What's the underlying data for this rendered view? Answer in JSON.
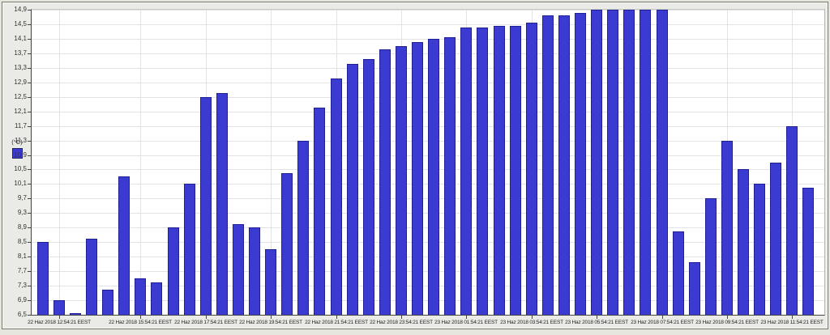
{
  "window": {
    "background": "#e6e6df",
    "panel_background": "#eaeae6",
    "panel_border_color": "#76766c"
  },
  "legend": {
    "label": "(°C)",
    "swatch_color": "#3b3bd1"
  },
  "chart_data": {
    "type": "bar",
    "title": "",
    "xlabel": "",
    "ylabel": "(°C)",
    "unit": "°C",
    "ylim": [
      6.5,
      14.9
    ],
    "y_tick_step": 0.4,
    "grid": true,
    "legend_position": "left",
    "plot_background": "#ffffff",
    "gridline_color": "#e3e3e3",
    "axis_color": "#444444",
    "bar_color": "#3b3bd1",
    "bar_border_color": "#1f1f96",
    "y_tick_labels": [
      "6,5",
      "6,9",
      "7,3",
      "7,7",
      "8,1",
      "8,5",
      "8,9",
      "9,3",
      "9,7",
      "10,1",
      "10,5",
      "10,9",
      "11,3",
      "11,7",
      "12,1",
      "12,5",
      "12,9",
      "13,3",
      "13,7",
      "14,1",
      "14,5",
      "14,9"
    ],
    "values": [
      8.5,
      6.9,
      6.55,
      8.6,
      7.2,
      10.3,
      7.5,
      7.4,
      8.9,
      10.1,
      12.5,
      12.6,
      9.0,
      8.9,
      8.3,
      10.4,
      11.3,
      12.2,
      13.0,
      13.4,
      13.55,
      13.8,
      13.9,
      14.0,
      14.1,
      14.15,
      14.4,
      14.4,
      14.45,
      14.45,
      14.55,
      14.75,
      14.75,
      14.8,
      14.9,
      14.9,
      14.9,
      14.9,
      14.9,
      8.8,
      7.95,
      9.7,
      11.3,
      10.5,
      10.1,
      10.7,
      11.7,
      10.0
    ],
    "x_tick_labels": [
      {
        "label": "22 Haz 2018 12:54:21 EEST",
        "bar_index": 1
      },
      {
        "label": "22 Haz 2018 15:54:21 EEST",
        "bar_index": 6
      },
      {
        "label": "22 Haz 2018 17:54:21 EEST",
        "bar_index": 10
      },
      {
        "label": "22 Haz 2018 19:54:21 EEST",
        "bar_index": 14
      },
      {
        "label": "22 Haz 2018 21:54:21 EEST",
        "bar_index": 18
      },
      {
        "label": "22 Haz 2018 23:54:21 EEST",
        "bar_index": 22
      },
      {
        "label": "23 Haz 2018 01:54:21 EEST",
        "bar_index": 26
      },
      {
        "label": "23 Haz 2018 03:54:21 EEST",
        "bar_index": 30
      },
      {
        "label": "23 Haz 2018 05:54:21 EEST",
        "bar_index": 34
      },
      {
        "label": "23 Haz 2018 07:54:21 EEST",
        "bar_index": 38
      },
      {
        "label": "23 Haz 2018 09:54:21 EEST",
        "bar_index": 42
      },
      {
        "label": "23 Haz 2018 11:54:21 EEST",
        "bar_index": 46
      }
    ]
  }
}
